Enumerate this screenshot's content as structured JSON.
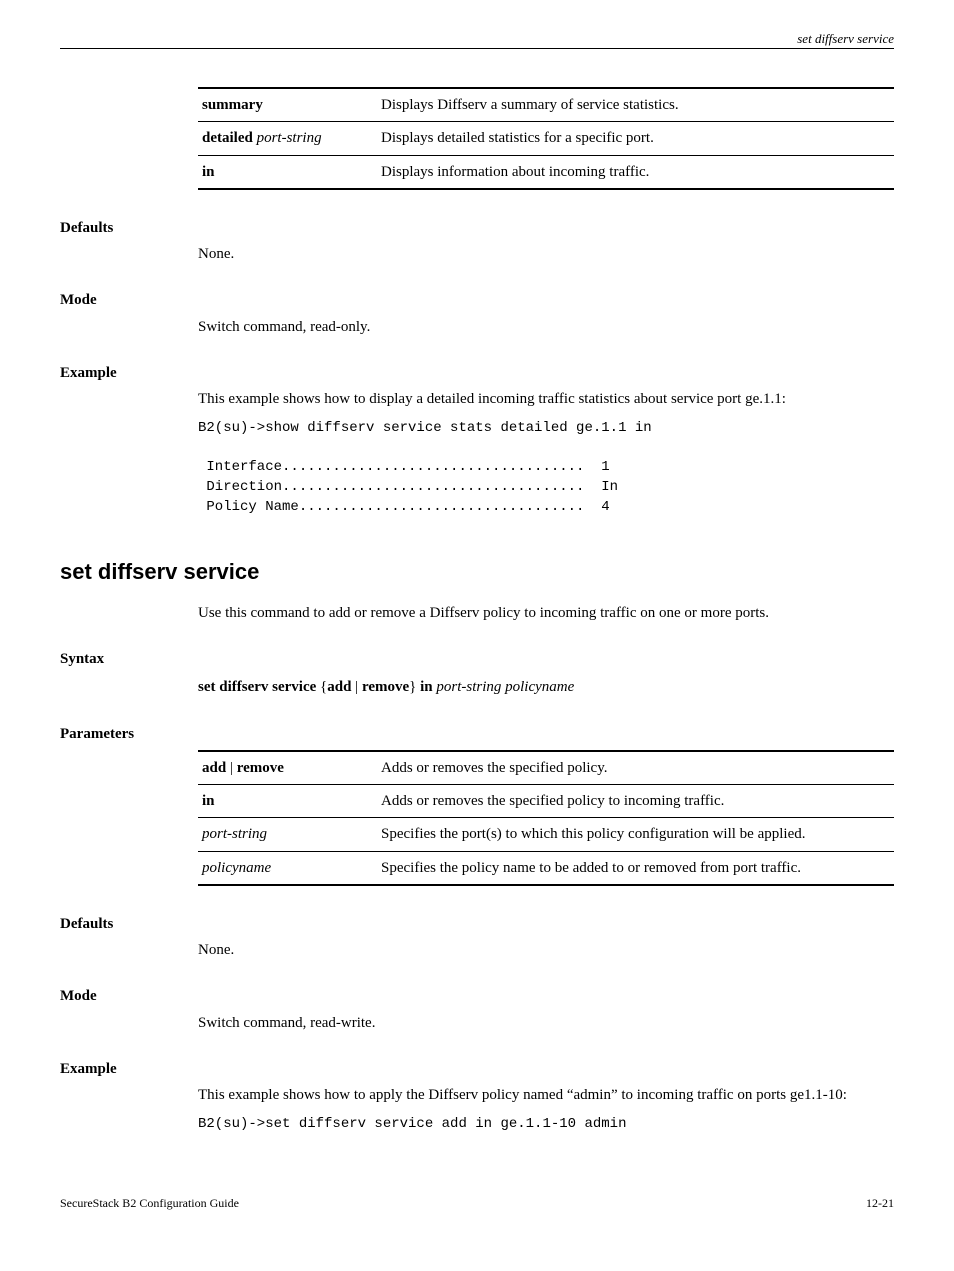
{
  "header": {
    "right_text": "set diffserv service"
  },
  "table1": {
    "rows": [
      {
        "k_bold": "summary",
        "k_ital": "",
        "v": "Displays Diffserv a summary of service statistics."
      },
      {
        "k_bold": "detailed",
        "k_ital": " port-string",
        "v": "Displays detailed statistics for a specific port."
      },
      {
        "k_bold": "in",
        "k_ital": "",
        "v": "Displays information about incoming traffic."
      }
    ]
  },
  "section1": {
    "defaults_h": "Defaults",
    "defaults_b": "None.",
    "mode_h": "Mode",
    "mode_b": "Switch command, read-only.",
    "example_h": "Example",
    "example_b": "This example shows how to display a detailed incoming traffic statistics about service port ge.1.1:",
    "code": "B2(su)->show diffserv service stats detailed ge.1.1 in\n\n Interface....................................  1\n Direction....................................  In\n Policy Name..................................  4"
  },
  "cmd2": {
    "title": "set diffserv service",
    "intro": "Use this command to add or remove a Diffserv policy to incoming traffic on one or more ports.",
    "syntax_h": "Syntax",
    "syntax_bold1": "set diffserv service",
    "syntax_mid": " {",
    "syntax_bold2": "add",
    "syntax_pipe": " | ",
    "syntax_bold3": "remove",
    "syntax_close": "} ",
    "syntax_bold4": "in ",
    "syntax_ital1": "port-string policyname",
    "params_h": "Parameters"
  },
  "table2": {
    "rows": [
      {
        "k_bold": "add",
        "k_sep": " | ",
        "k_bold2": "remove",
        "k_ital": "",
        "v": "Adds or removes the specified policy."
      },
      {
        "k_bold": "in",
        "k_sep": "",
        "k_bold2": "",
        "k_ital": "",
        "v": "Adds or removes the specified policy to incoming traffic."
      },
      {
        "k_bold": "",
        "k_sep": "",
        "k_bold2": "",
        "k_ital": "port-string",
        "v": "Specifies the port(s) to which this policy configuration will be applied."
      },
      {
        "k_bold": "",
        "k_sep": "",
        "k_bold2": "",
        "k_ital": "policyname",
        "v": "Specifies the policy name to be added to or removed from port traffic."
      }
    ]
  },
  "section2": {
    "defaults_h": "Defaults",
    "defaults_b": "None.",
    "mode_h": "Mode",
    "mode_b": "Switch command, read-write.",
    "example_h": "Example",
    "example_b": "This example shows how to apply the Diffserv policy named “admin” to incoming traffic on ports ge1.1-10:",
    "code": "B2(su)->set diffserv service add in ge.1.1-10 admin"
  },
  "footer": {
    "left": "SecureStack B2 Configuration Guide",
    "right": "12-21"
  }
}
